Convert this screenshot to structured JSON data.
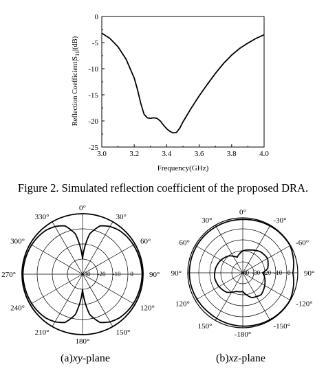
{
  "figure_caption": "Figure 2. Simulated reflection coefficient of the proposed DRA.",
  "subcaptions": {
    "a": {
      "prefix": "(a)",
      "italic": "xy",
      "suffix": "-plane"
    },
    "b": {
      "prefix": "(b)",
      "italic": "xz",
      "suffix": "-plane"
    }
  },
  "chart_data": [
    {
      "type": "line",
      "title": "",
      "xlabel": "Frequency(GHz)",
      "ylabel": "Reflection Coefficient|S11|(dB)",
      "xlim": [
        3.0,
        4.0
      ],
      "ylim": [
        -25,
        0
      ],
      "xticks": [
        "3.0",
        "3.2",
        "3.4",
        "3.6",
        "3.8",
        "4.0"
      ],
      "yticks": [
        "0",
        "-5",
        "-10",
        "-15",
        "-20",
        "-25"
      ],
      "grid": false,
      "series": [
        {
          "x": [
            3.0,
            3.05,
            3.1,
            3.15,
            3.2,
            3.22,
            3.24,
            3.26,
            3.28,
            3.3,
            3.32,
            3.34,
            3.36,
            3.38,
            3.4,
            3.42,
            3.44,
            3.46,
            3.48,
            3.5,
            3.55,
            3.6,
            3.65,
            3.7,
            3.75,
            3.8,
            3.85,
            3.9,
            3.95,
            4.0
          ],
          "y": [
            -3.2,
            -4.2,
            -5.8,
            -8.2,
            -11.8,
            -14.0,
            -16.6,
            -18.7,
            -19.4,
            -19.5,
            -19.4,
            -19.5,
            -20.0,
            -20.8,
            -21.5,
            -22.0,
            -22.3,
            -22.2,
            -21.4,
            -20.2,
            -17.6,
            -15.2,
            -13.0,
            -10.9,
            -9.0,
            -7.4,
            -6.1,
            -5.1,
            -4.2,
            -3.5
          ]
        }
      ]
    },
    {
      "type": "polar",
      "plane": "xy",
      "angle_labels": [
        "0°",
        "30°",
        "60°",
        "90°",
        "120°",
        "150°",
        "180°",
        "210°",
        "240°",
        "270°",
        "300°",
        "330°"
      ],
      "radial_labels": [
        "-30",
        "-20",
        "-10",
        "0"
      ],
      "radial_range_db": [
        -40,
        0
      ],
      "pattern": {
        "angles_deg": [
          0,
          10,
          20,
          30,
          40,
          50,
          60,
          70,
          80,
          90,
          100,
          110,
          120,
          130,
          140,
          150,
          160,
          170,
          180,
          190,
          200,
          210,
          220,
          230,
          240,
          250,
          260,
          270,
          280,
          290,
          300,
          310,
          320,
          330,
          340,
          350
        ],
        "gain_db": [
          -30,
          -13,
          -6,
          -3.6,
          -2.2,
          -1.6,
          -1.2,
          -1.0,
          -0.8,
          -0.6,
          -0.8,
          -1.0,
          -1.2,
          -1.6,
          -2.2,
          -3.6,
          -6,
          -13,
          -30,
          -13,
          -6,
          -3.6,
          -2.2,
          -1.6,
          -1.2,
          -1.0,
          -0.8,
          -0.6,
          -0.8,
          -1.0,
          -1.2,
          -1.6,
          -2.2,
          -3.6,
          -6,
          -13
        ]
      },
      "outer_pattern": {
        "shape": "circle",
        "gain_db": 0
      }
    },
    {
      "type": "polar",
      "plane": "xz",
      "angle_labels": [
        "0°",
        "-30°",
        "-60°",
        "90°",
        "-120°",
        "-150°",
        "-180°",
        "150°",
        "120°",
        "90°",
        "60°",
        "30°"
      ],
      "radial_labels": [
        "-40",
        "-30",
        "-20",
        "-10",
        "0"
      ],
      "radial_range_db": [
        -50,
        0
      ],
      "patterns": [
        {
          "angles_deg": [
            0,
            20,
            40,
            60,
            80,
            90,
            100,
            120,
            140,
            160,
            180,
            200,
            220,
            240,
            260,
            280,
            300,
            320,
            340
          ],
          "gain_db": [
            -1.5,
            -1,
            -0.5,
            -0.4,
            -3,
            -4.5,
            -3,
            -0.4,
            -0.5,
            -1,
            -1.5,
            -2,
            -2.5,
            -2,
            -1.5,
            -1.5,
            -1.5,
            -1.5,
            -1.5
          ]
        },
        {
          "angles_deg": [
            0,
            20,
            40,
            60,
            80,
            90,
            100,
            120,
            140,
            160,
            180,
            200,
            220,
            240,
            260,
            280,
            300,
            320,
            340
          ],
          "gain_db": [
            -30,
            -28,
            -25,
            -24,
            -27,
            -32,
            -30,
            -27,
            -24,
            -26,
            -33,
            -32,
            -27,
            -25,
            -24,
            -25,
            -27,
            -30,
            -35
          ]
        }
      ]
    }
  ]
}
